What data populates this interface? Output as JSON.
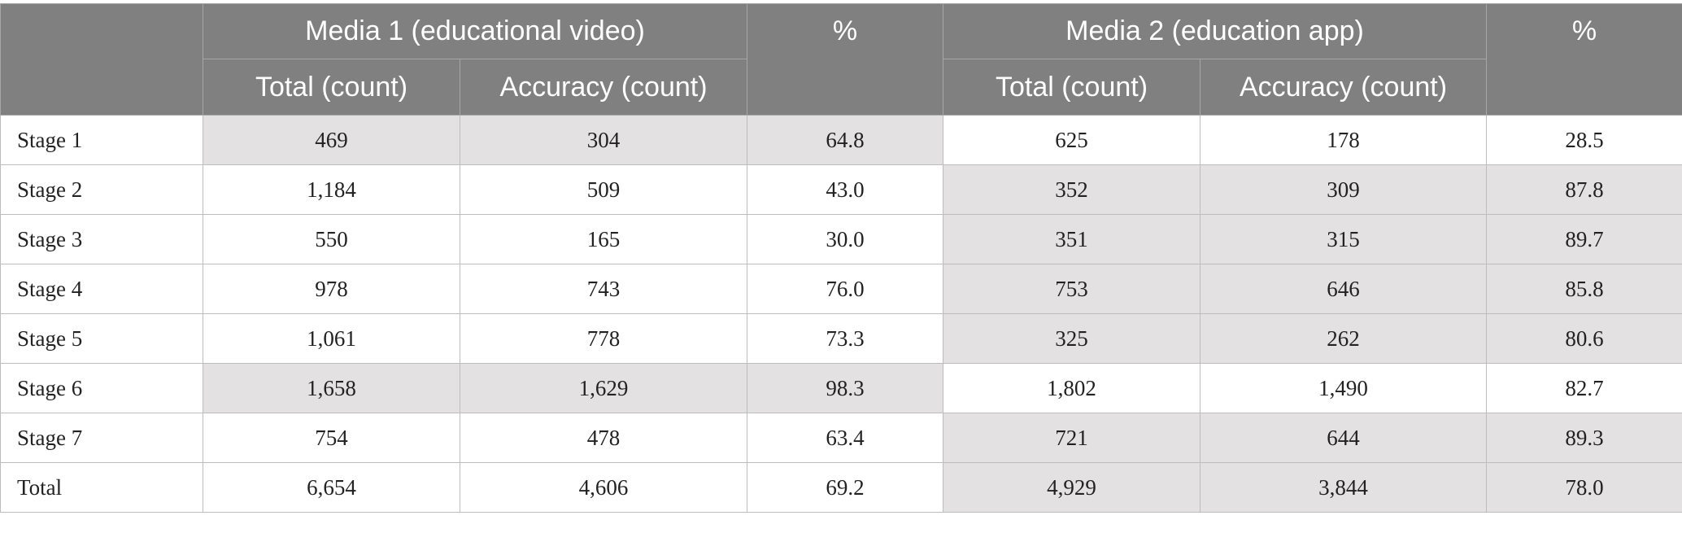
{
  "header": {
    "corner": "",
    "group1": "Media 1 (educational video)",
    "group2": "Media 2 (education app)",
    "pct1": "%",
    "pct2": "%",
    "m1_total": "Total (count)",
    "m1_accuracy": "Accuracy (count)",
    "m2_total": "Total (count)",
    "m2_accuracy": "Accuracy (count)"
  },
  "rows": [
    {
      "stage": "Stage 1",
      "m1_total": "469",
      "m1_acc": "304",
      "m1_pct": "64.8",
      "m2_total": "625",
      "m2_acc": "178",
      "m2_pct": "28.5",
      "m1_shaded": true,
      "m2_shaded": false
    },
    {
      "stage": "Stage 2",
      "m1_total": "1,184",
      "m1_acc": "509",
      "m1_pct": "43.0",
      "m2_total": "352",
      "m2_acc": "309",
      "m2_pct": "87.8",
      "m1_shaded": false,
      "m2_shaded": true
    },
    {
      "stage": "Stage 3",
      "m1_total": "550",
      "m1_acc": "165",
      "m1_pct": "30.0",
      "m2_total": "351",
      "m2_acc": "315",
      "m2_pct": "89.7",
      "m1_shaded": false,
      "m2_shaded": true
    },
    {
      "stage": "Stage 4",
      "m1_total": "978",
      "m1_acc": "743",
      "m1_pct": "76.0",
      "m2_total": "753",
      "m2_acc": "646",
      "m2_pct": "85.8",
      "m1_shaded": false,
      "m2_shaded": true
    },
    {
      "stage": "Stage 5",
      "m1_total": "1,061",
      "m1_acc": "778",
      "m1_pct": "73.3",
      "m2_total": "325",
      "m2_acc": "262",
      "m2_pct": "80.6",
      "m1_shaded": false,
      "m2_shaded": true
    },
    {
      "stage": "Stage 6",
      "m1_total": "1,658",
      "m1_acc": "1,629",
      "m1_pct": "98.3",
      "m2_total": "1,802",
      "m2_acc": "1,490",
      "m2_pct": "82.7",
      "m1_shaded": true,
      "m2_shaded": false
    },
    {
      "stage": "Stage 7",
      "m1_total": "754",
      "m1_acc": "478",
      "m1_pct": "63.4",
      "m2_total": "721",
      "m2_acc": "644",
      "m2_pct": "89.3",
      "m1_shaded": false,
      "m2_shaded": true
    },
    {
      "stage": "Total",
      "m1_total": "6,654",
      "m1_acc": "4,606",
      "m1_pct": "69.2",
      "m2_total": "4,929",
      "m2_acc": "3,844",
      "m2_pct": "78.0",
      "m1_shaded": false,
      "m2_shaded": true
    }
  ],
  "colors": {
    "header_bg": "#808080",
    "header_text": "#ffffff",
    "shaded_cell": "#e3e1e2",
    "plain_cell": "#ffffff"
  }
}
